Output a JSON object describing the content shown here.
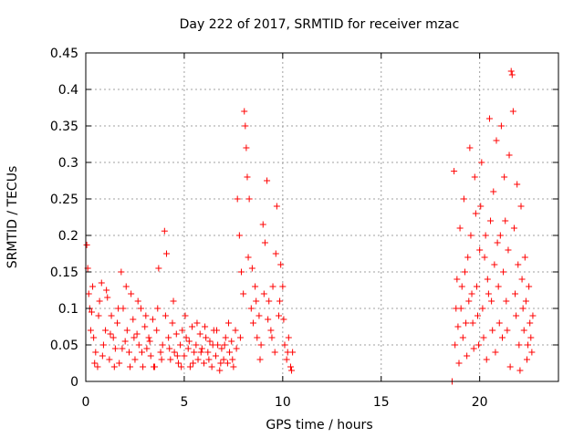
{
  "chart_data": {
    "type": "scatter",
    "title": "Day 222 of 2017, SRMTID for receiver mzac",
    "xlabel": "GPS time / hours",
    "ylabel": "SRMTID / TECUs",
    "xlim": [
      0,
      24
    ],
    "ylim": [
      0,
      0.45
    ],
    "xticks": [
      0,
      5,
      10,
      15,
      20
    ],
    "xtick_labels": [
      "0",
      "5",
      "10",
      "15",
      "20"
    ],
    "yticks": [
      0,
      0.05,
      0.1,
      0.15,
      0.2,
      0.25,
      0.3,
      0.35,
      0.4,
      0.45
    ],
    "ytick_labels": [
      "0",
      "0.05",
      "0.1",
      "0.15",
      "0.2",
      "0.25",
      "0.3",
      "0.35",
      "0.4",
      "0.45"
    ],
    "grid": true,
    "marker": "+",
    "color": "#ff0000",
    "series": [
      {
        "name": "SRMTID",
        "points": [
          [
            0.05,
            0.187
          ],
          [
            0.1,
            0.155
          ],
          [
            0.15,
            0.12
          ],
          [
            0.2,
            0.1
          ],
          [
            0.3,
            0.095
          ],
          [
            0.35,
            0.13
          ],
          [
            0.4,
            0.06
          ],
          [
            0.5,
            0.04
          ],
          [
            0.6,
            0.02
          ],
          [
            0.7,
            0.11
          ],
          [
            0.8,
            0.135
          ],
          [
            0.9,
            0.05
          ],
          [
            1.0,
            0.07
          ],
          [
            1.1,
            0.115
          ],
          [
            1.2,
            0.03
          ],
          [
            1.3,
            0.09
          ],
          [
            1.4,
            0.06
          ],
          [
            1.5,
            0.045
          ],
          [
            1.6,
            0.08
          ],
          [
            1.7,
            0.025
          ],
          [
            1.8,
            0.15
          ],
          [
            1.9,
            0.1
          ],
          [
            2.0,
            0.055
          ],
          [
            2.1,
            0.07
          ],
          [
            2.2,
            0.04
          ],
          [
            2.3,
            0.12
          ],
          [
            2.4,
            0.085
          ],
          [
            2.5,
            0.03
          ],
          [
            2.6,
            0.065
          ],
          [
            2.7,
            0.05
          ],
          [
            2.8,
            0.1
          ],
          [
            2.9,
            0.02
          ],
          [
            3.0,
            0.075
          ],
          [
            3.1,
            0.045
          ],
          [
            3.2,
            0.06
          ],
          [
            3.3,
            0.035
          ],
          [
            3.4,
            0.085
          ],
          [
            3.5,
            0.02
          ],
          [
            3.6,
            0.07
          ],
          [
            3.7,
            0.155
          ],
          [
            3.8,
            0.04
          ],
          [
            3.9,
            0.05
          ],
          [
            4.0,
            0.206
          ],
          [
            4.1,
            0.175
          ],
          [
            4.2,
            0.06
          ],
          [
            4.3,
            0.03
          ],
          [
            4.4,
            0.08
          ],
          [
            4.5,
            0.04
          ],
          [
            4.6,
            0.065
          ],
          [
            4.7,
            0.025
          ],
          [
            4.8,
            0.05
          ],
          [
            4.9,
            0.07
          ],
          [
            5.0,
            0.035
          ],
          [
            5.1,
            0.06
          ],
          [
            5.2,
            0.045
          ],
          [
            5.3,
            0.02
          ],
          [
            5.4,
            0.075
          ],
          [
            5.5,
            0.04
          ],
          [
            5.6,
            0.05
          ],
          [
            5.7,
            0.03
          ],
          [
            5.8,
            0.065
          ],
          [
            5.9,
            0.045
          ],
          [
            6.0,
            0.025
          ],
          [
            6.1,
            0.06
          ],
          [
            6.2,
            0.04
          ],
          [
            6.3,
            0.055
          ],
          [
            6.4,
            0.02
          ],
          [
            6.5,
            0.07
          ],
          [
            6.6,
            0.035
          ],
          [
            6.7,
            0.05
          ],
          [
            6.8,
            0.015
          ],
          [
            6.9,
            0.045
          ],
          [
            7.0,
            0.03
          ],
          [
            7.1,
            0.06
          ],
          [
            7.2,
            0.025
          ],
          [
            7.3,
            0.04
          ],
          [
            7.4,
            0.055
          ],
          [
            7.5,
            0.02
          ],
          [
            7.6,
            0.07
          ],
          [
            7.7,
            0.25
          ],
          [
            7.8,
            0.2
          ],
          [
            7.9,
            0.15
          ],
          [
            8.0,
            0.12
          ],
          [
            8.05,
            0.37
          ],
          [
            8.1,
            0.35
          ],
          [
            8.15,
            0.32
          ],
          [
            8.2,
            0.28
          ],
          [
            8.3,
            0.25
          ],
          [
            8.4,
            0.1
          ],
          [
            8.5,
            0.08
          ],
          [
            8.6,
            0.13
          ],
          [
            8.7,
            0.06
          ],
          [
            8.8,
            0.09
          ],
          [
            8.9,
            0.05
          ],
          [
            9.0,
            0.215
          ],
          [
            9.1,
            0.19
          ],
          [
            9.2,
            0.275
          ],
          [
            9.3,
            0.11
          ],
          [
            9.4,
            0.07
          ],
          [
            9.5,
            0.13
          ],
          [
            9.6,
            0.04
          ],
          [
            9.7,
            0.24
          ],
          [
            9.8,
            0.09
          ],
          [
            9.9,
            0.16
          ],
          [
            10.0,
            0.13
          ],
          [
            10.1,
            0.05
          ],
          [
            10.2,
            0.03
          ],
          [
            10.3,
            0.06
          ],
          [
            10.4,
            0.02
          ],
          [
            10.5,
            0.04
          ],
          [
            0.25,
            0.07
          ],
          [
            0.45,
            0.025
          ],
          [
            0.65,
            0.09
          ],
          [
            0.85,
            0.035
          ],
          [
            1.05,
            0.125
          ],
          [
            1.25,
            0.065
          ],
          [
            1.45,
            0.02
          ],
          [
            1.65,
            0.1
          ],
          [
            1.85,
            0.045
          ],
          [
            2.05,
            0.13
          ],
          [
            2.25,
            0.02
          ],
          [
            2.45,
            0.06
          ],
          [
            2.65,
            0.11
          ],
          [
            2.85,
            0.04
          ],
          [
            3.05,
            0.09
          ],
          [
            3.25,
            0.055
          ],
          [
            3.45,
            0.02
          ],
          [
            3.65,
            0.1
          ],
          [
            3.85,
            0.03
          ],
          [
            4.05,
            0.09
          ],
          [
            4.25,
            0.045
          ],
          [
            4.45,
            0.11
          ],
          [
            4.65,
            0.035
          ],
          [
            4.85,
            0.02
          ],
          [
            5.05,
            0.09
          ],
          [
            5.25,
            0.055
          ],
          [
            5.45,
            0.025
          ],
          [
            5.65,
            0.08
          ],
          [
            5.85,
            0.04
          ],
          [
            6.05,
            0.075
          ],
          [
            6.25,
            0.03
          ],
          [
            6.45,
            0.05
          ],
          [
            6.65,
            0.07
          ],
          [
            6.85,
            0.025
          ],
          [
            7.05,
            0.05
          ],
          [
            7.25,
            0.08
          ],
          [
            7.45,
            0.03
          ],
          [
            7.65,
            0.045
          ],
          [
            7.85,
            0.06
          ],
          [
            8.25,
            0.17
          ],
          [
            8.45,
            0.155
          ],
          [
            8.65,
            0.11
          ],
          [
            8.85,
            0.03
          ],
          [
            9.05,
            0.12
          ],
          [
            9.25,
            0.085
          ],
          [
            9.45,
            0.06
          ],
          [
            9.65,
            0.175
          ],
          [
            9.85,
            0.11
          ],
          [
            10.05,
            0.085
          ],
          [
            10.25,
            0.04
          ],
          [
            10.45,
            0.015
          ],
          [
            18.6,
            0.0
          ],
          [
            18.7,
            0.288
          ],
          [
            18.8,
            0.1
          ],
          [
            18.9,
            0.075
          ],
          [
            19.0,
            0.21
          ],
          [
            19.1,
            0.13
          ],
          [
            19.2,
            0.25
          ],
          [
            19.3,
            0.08
          ],
          [
            19.4,
            0.17
          ],
          [
            19.5,
            0.32
          ],
          [
            19.6,
            0.12
          ],
          [
            19.7,
            0.045
          ],
          [
            19.8,
            0.23
          ],
          [
            19.9,
            0.09
          ],
          [
            20.0,
            0.18
          ],
          [
            20.1,
            0.3
          ],
          [
            20.2,
            0.06
          ],
          [
            20.3,
            0.2
          ],
          [
            20.4,
            0.14
          ],
          [
            20.5,
            0.36
          ],
          [
            20.6,
            0.11
          ],
          [
            20.7,
            0.26
          ],
          [
            20.8,
            0.04
          ],
          [
            20.9,
            0.19
          ],
          [
            21.0,
            0.08
          ],
          [
            21.1,
            0.35
          ],
          [
            21.2,
            0.15
          ],
          [
            21.3,
            0.22
          ],
          [
            21.4,
            0.07
          ],
          [
            21.5,
            0.31
          ],
          [
            21.6,
            0.425
          ],
          [
            21.65,
            0.42
          ],
          [
            21.7,
            0.37
          ],
          [
            21.8,
            0.12
          ],
          [
            21.9,
            0.27
          ],
          [
            22.0,
            0.05
          ],
          [
            22.1,
            0.24
          ],
          [
            22.2,
            0.1
          ],
          [
            22.3,
            0.17
          ],
          [
            22.4,
            0.03
          ],
          [
            22.5,
            0.13
          ],
          [
            22.6,
            0.06
          ],
          [
            22.7,
            0.09
          ],
          [
            18.75,
            0.05
          ],
          [
            18.85,
            0.14
          ],
          [
            18.95,
            0.025
          ],
          [
            19.05,
            0.1
          ],
          [
            19.15,
            0.06
          ],
          [
            19.25,
            0.15
          ],
          [
            19.35,
            0.035
          ],
          [
            19.45,
            0.11
          ],
          [
            19.55,
            0.2
          ],
          [
            19.65,
            0.08
          ],
          [
            19.75,
            0.28
          ],
          [
            19.85,
            0.13
          ],
          [
            19.95,
            0.05
          ],
          [
            20.05,
            0.24
          ],
          [
            20.15,
            0.1
          ],
          [
            20.25,
            0.17
          ],
          [
            20.35,
            0.03
          ],
          [
            20.45,
            0.12
          ],
          [
            20.55,
            0.22
          ],
          [
            20.65,
            0.07
          ],
          [
            20.75,
            0.16
          ],
          [
            20.85,
            0.33
          ],
          [
            20.95,
            0.13
          ],
          [
            21.05,
            0.2
          ],
          [
            21.15,
            0.06
          ],
          [
            21.25,
            0.28
          ],
          [
            21.35,
            0.11
          ],
          [
            21.45,
            0.18
          ],
          [
            21.55,
            0.02
          ],
          [
            21.75,
            0.21
          ],
          [
            21.85,
            0.09
          ],
          [
            21.95,
            0.16
          ],
          [
            22.05,
            0.015
          ],
          [
            22.15,
            0.14
          ],
          [
            22.25,
            0.07
          ],
          [
            22.35,
            0.11
          ],
          [
            22.45,
            0.05
          ],
          [
            22.55,
            0.08
          ],
          [
            22.65,
            0.04
          ]
        ]
      }
    ]
  }
}
